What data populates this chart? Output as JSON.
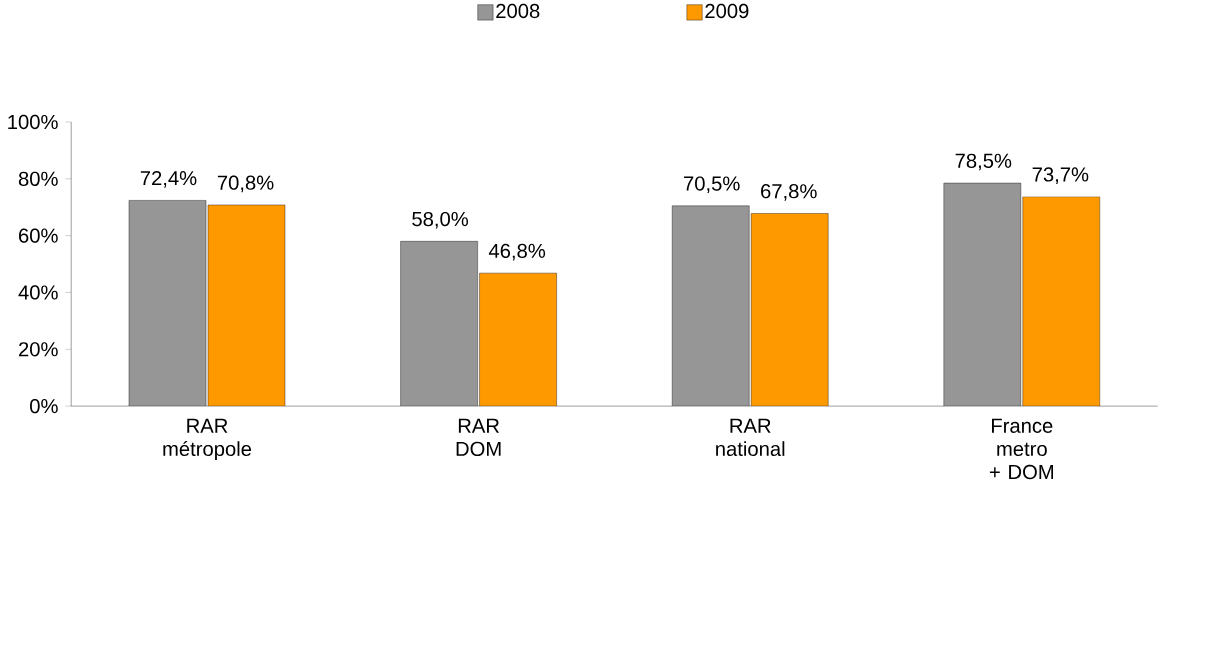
{
  "chart_data": {
    "type": "bar",
    "categories": [
      "RAR métropole",
      "RAR DOM",
      "RAR national",
      "France metro + DOM"
    ],
    "series": [
      {
        "name": "2008",
        "color": "#969696",
        "values": [
          72.4,
          58.0,
          70.5,
          78.5
        ],
        "value_labels": [
          "72,4%",
          "58,0%",
          "70,5%",
          "78,5%"
        ]
      },
      {
        "name": "2009",
        "color": "#ff9900",
        "values": [
          70.8,
          46.8,
          67.8,
          73.7
        ],
        "value_labels": [
          "70,8%",
          "46,8%",
          "67,8%",
          "73,7%"
        ]
      }
    ],
    "ylim": [
      0,
      100
    ],
    "yticks": [
      {
        "value": 0,
        "label": "0%"
      },
      {
        "value": 20,
        "label": "20%"
      },
      {
        "value": 40,
        "label": "40%"
      },
      {
        "value": 60,
        "label": "60%"
      },
      {
        "value": 80,
        "label": "80%"
      },
      {
        "value": 100,
        "label": "100%"
      }
    ],
    "legend": "top",
    "grid": false
  }
}
